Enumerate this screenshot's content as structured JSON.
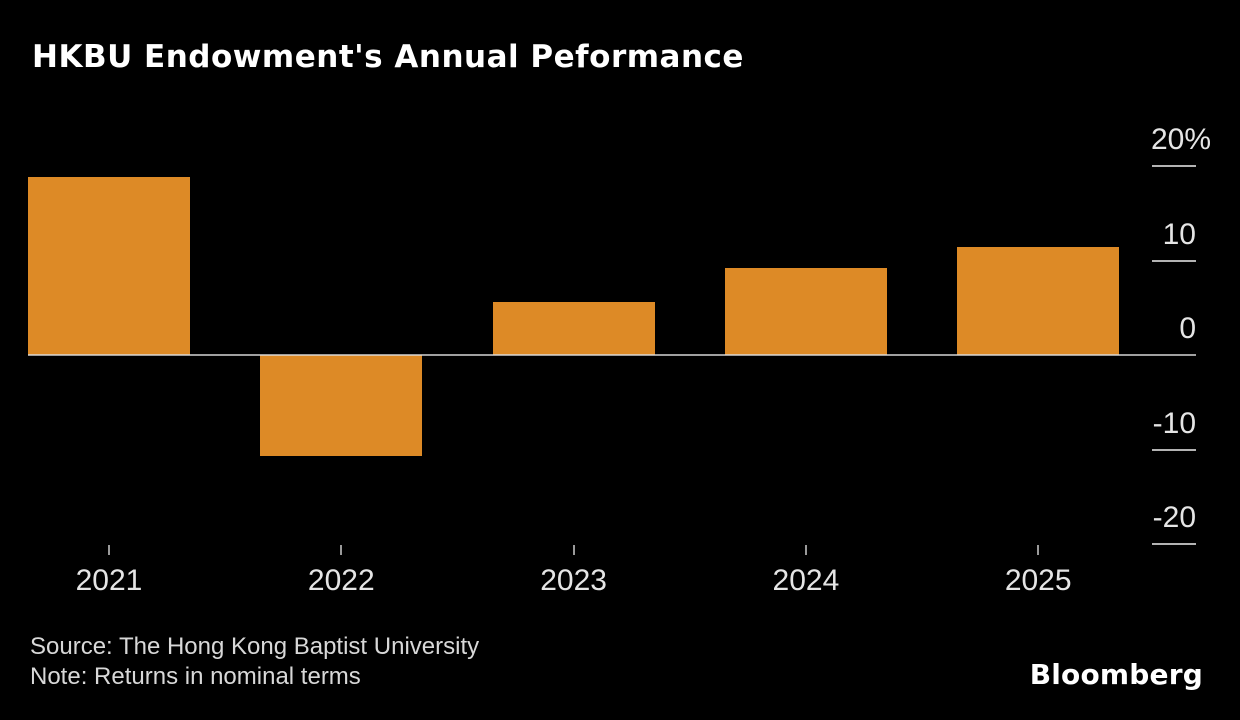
{
  "title": "HKBU Endowment's Annual Peformance",
  "source": "Source: The Hong Kong Baptist University",
  "note": "Note: Returns in nominal terms",
  "logo": "Bloomberg",
  "colors": {
    "background": "#000000",
    "bar": "#DD8A26",
    "zero_line": "rgba(222,222,222,0.72)",
    "y_dash": "#B3B3B3",
    "x_tick": "#9A9A9A",
    "axis_label": "#E5E5E5",
    "title_text": "#FFFFFF",
    "footnote_text": "#D8D8D8"
  },
  "chart_data": {
    "type": "bar",
    "categories": [
      "2021",
      "2022",
      "2023",
      "2024",
      "2025"
    ],
    "values": [
      18.8,
      -10.7,
      5.6,
      9.2,
      11.4
    ],
    "title": "HKBU Endowment's Annual Peformance",
    "xlabel": "",
    "ylabel": "%",
    "ylim": [
      -22.7,
      22.7
    ],
    "yticks": [
      {
        "value": 20,
        "label": "20%"
      },
      {
        "value": 10,
        "label": "10"
      },
      {
        "value": 0,
        "label": "0"
      },
      {
        "value": -10,
        "label": "-10"
      },
      {
        "value": -20,
        "label": "-20"
      }
    ],
    "grid": false,
    "legend": "none",
    "bar_color": "#DD8A26",
    "unit": "percent"
  }
}
